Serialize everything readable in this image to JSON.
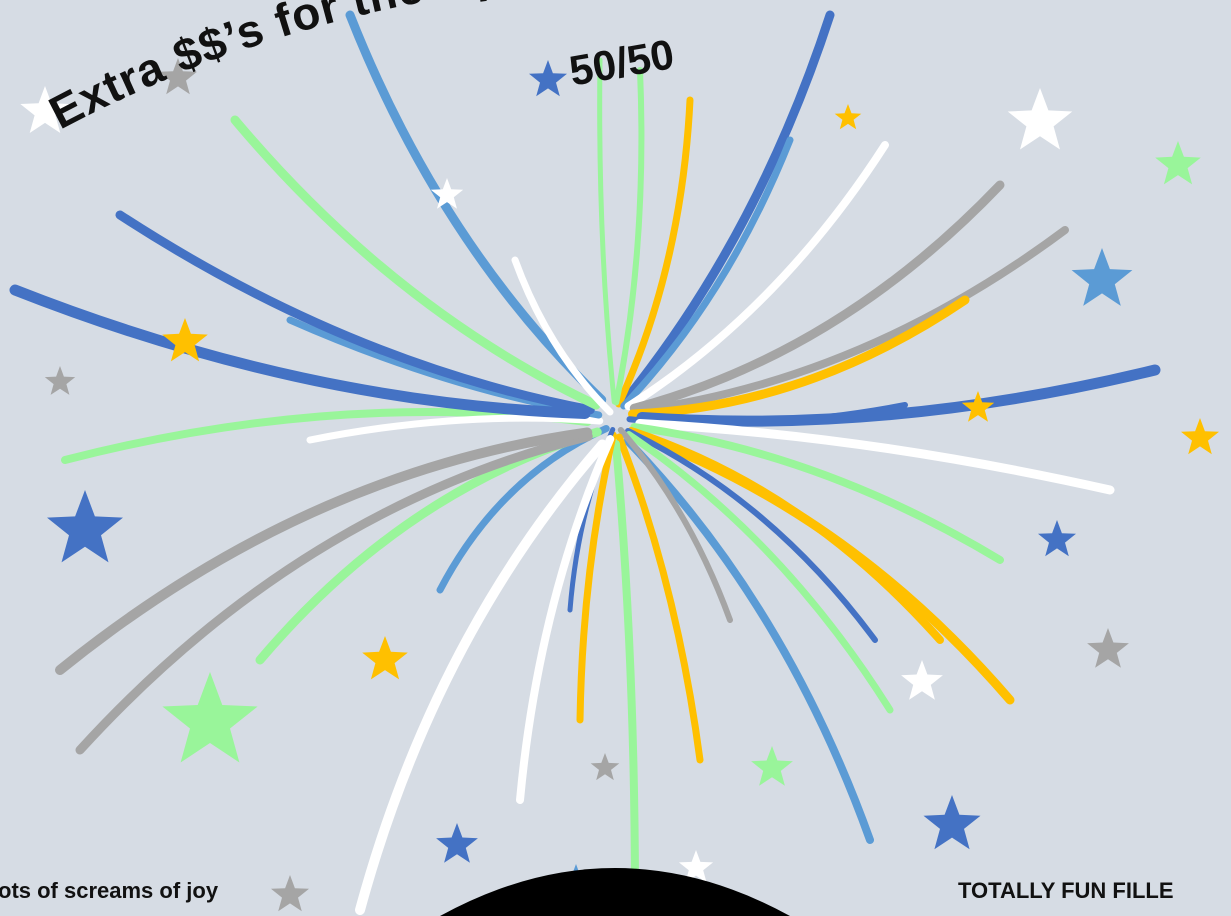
{
  "headline": {
    "arched_text": "Extra $$’s for the Oppor",
    "subtitle": "50/50"
  },
  "captions": {
    "left": "ots of screams of joy",
    "right": "TOTALLY FUN FILLE"
  },
  "colors": {
    "background": "#d6dce4",
    "dark_blue": "#4472c4",
    "light_blue": "#5b9bd5",
    "green": "#99f59a",
    "gold": "#ffc000",
    "gray": "#a5a5a5",
    "white": "#ffffff",
    "black": "#000000"
  },
  "icons": {
    "firework": "firework-burst-icon",
    "star": "star-icon"
  }
}
